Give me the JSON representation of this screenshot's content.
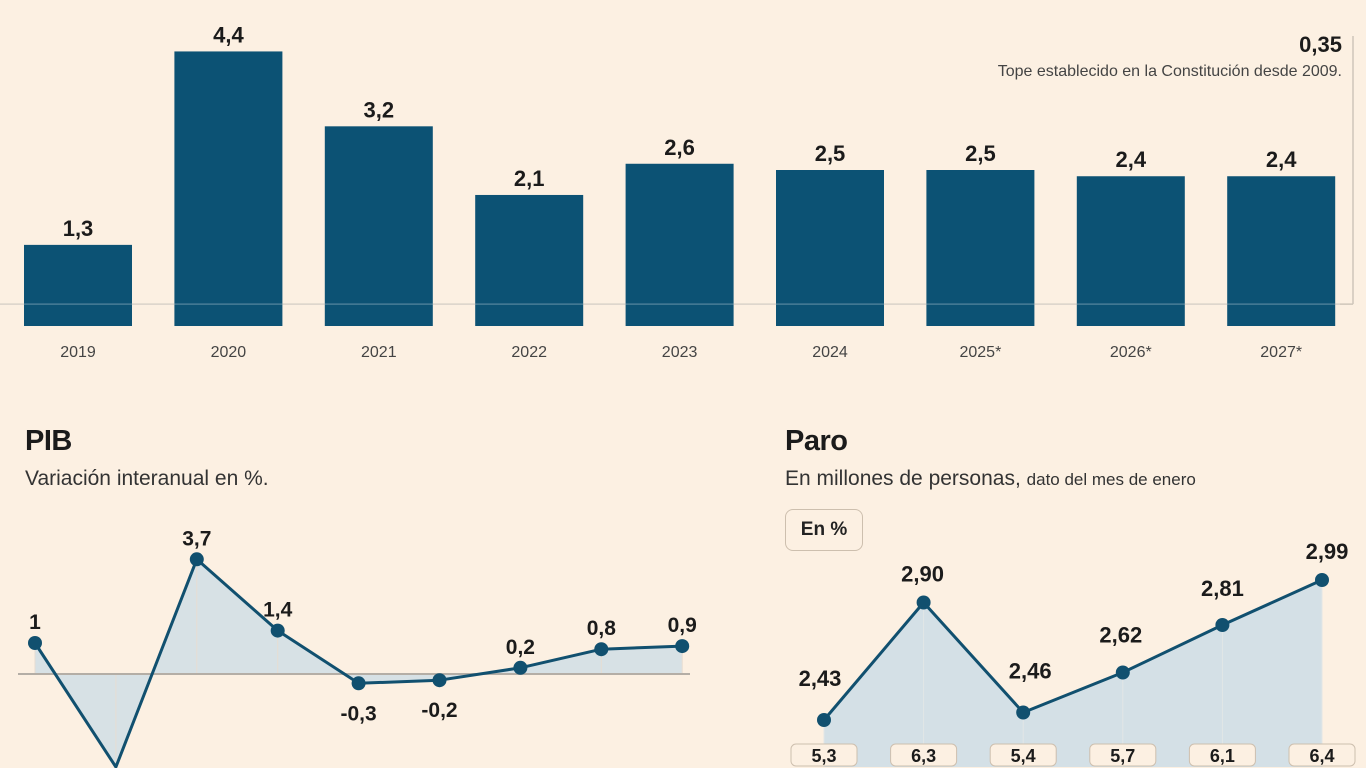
{
  "colors": {
    "background": "#fcf0e2",
    "bar": "#0c5274",
    "line": "#11506f",
    "area": "#cddde6",
    "zero_line": "#b4aea6",
    "text": "#1b1b1b"
  },
  "chart_data": [
    {
      "type": "bar",
      "categories": [
        "2019",
        "2020",
        "2021",
        "2022",
        "2023",
        "2024",
        "2025*",
        "2026*",
        "2027*"
      ],
      "values": [
        1.3,
        4.4,
        3.2,
        2.1,
        2.6,
        2.5,
        2.5,
        2.4,
        2.4
      ],
      "data_labels": [
        "1,3",
        "4,4",
        "3,2",
        "2,1",
        "2,6",
        "2,5",
        "2,5",
        "2,4",
        "2,4"
      ],
      "reference_line": {
        "value": 0.35,
        "label": "0,35",
        "annotation": "Tope establecido en la Constitución desde 2009."
      },
      "grid": false
    },
    {
      "type": "area",
      "title": "PIB",
      "subtitle": "Variación interanual en %.",
      "values": [
        1,
        null,
        3.7,
        1.4,
        -0.3,
        -0.2,
        0.2,
        0.8,
        0.9
      ],
      "data_labels": [
        "1",
        "",
        "3,7",
        "1,4",
        "-0,3",
        "-0,2",
        "0,2",
        "0,8",
        "0,9"
      ],
      "baseline": 0
    },
    {
      "type": "line",
      "title": "Paro",
      "subtitle": "En millones de personas,",
      "subtitle_note": "dato del mes de enero",
      "badge": "En %",
      "values": [
        2.43,
        2.9,
        2.46,
        2.62,
        2.81,
        2.99
      ],
      "data_labels": [
        "2,43",
        "2,90",
        "2,46",
        "2,62",
        "2,81",
        "2,99"
      ],
      "percent_labels": [
        "5,3",
        "6,3",
        "5,4",
        "5,7",
        "6,1",
        "6,4"
      ]
    }
  ]
}
